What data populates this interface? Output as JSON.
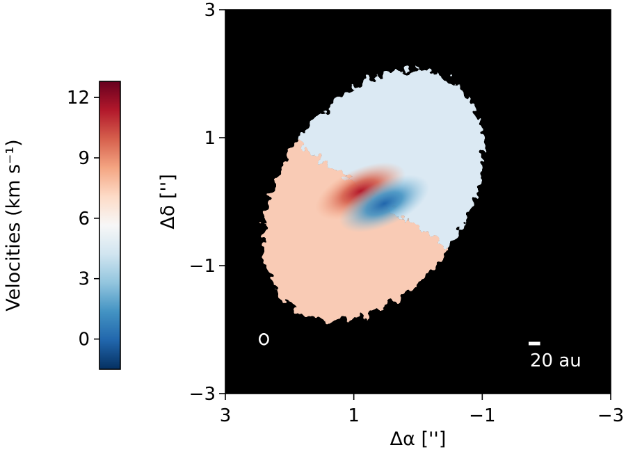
{
  "chart_data": {
    "type": "heatmap",
    "xlabel": "Δα ['']",
    "ylabel": "Δδ ['']",
    "xlim": [
      3,
      -3
    ],
    "ylim": [
      -3,
      3
    ],
    "x_ticks": [
      3,
      1,
      -1,
      -3
    ],
    "y_ticks": [
      -3,
      -1,
      1,
      3
    ],
    "x_tick_labels": [
      "3",
      "1",
      "−1",
      "−3"
    ],
    "y_tick_labels": [
      "−3",
      "−1",
      "1",
      "3"
    ],
    "grid": false,
    "background_color": "#000000",
    "colorbar": {
      "label": "Velocities (km s⁻¹)",
      "range": [
        -1.5,
        12.8
      ],
      "ticks": [
        0,
        3,
        6,
        9,
        12
      ],
      "tick_labels": [
        "0",
        "3",
        "6",
        "9",
        "12"
      ],
      "colormap": "RdBu_r",
      "position": "left"
    },
    "disk": {
      "center": [
        0.7,
        0.1
      ],
      "semi_major_axis": 2.15,
      "semi_minor_axis": 1.45,
      "position_angle_deg": 55,
      "systemic_velocity": 5.8,
      "redshifted_side": "north-east",
      "blueshifted_side": "south-west",
      "peak_red_velocity": 12.2,
      "peak_blue_velocity": -0.8
    },
    "beam": {
      "position": [
        2.4,
        -2.15
      ],
      "major": 0.12,
      "minor": 0.09
    },
    "scalebar": {
      "label": "20 au",
      "length_arcsec": 0.18,
      "position": "bottom-right"
    }
  }
}
